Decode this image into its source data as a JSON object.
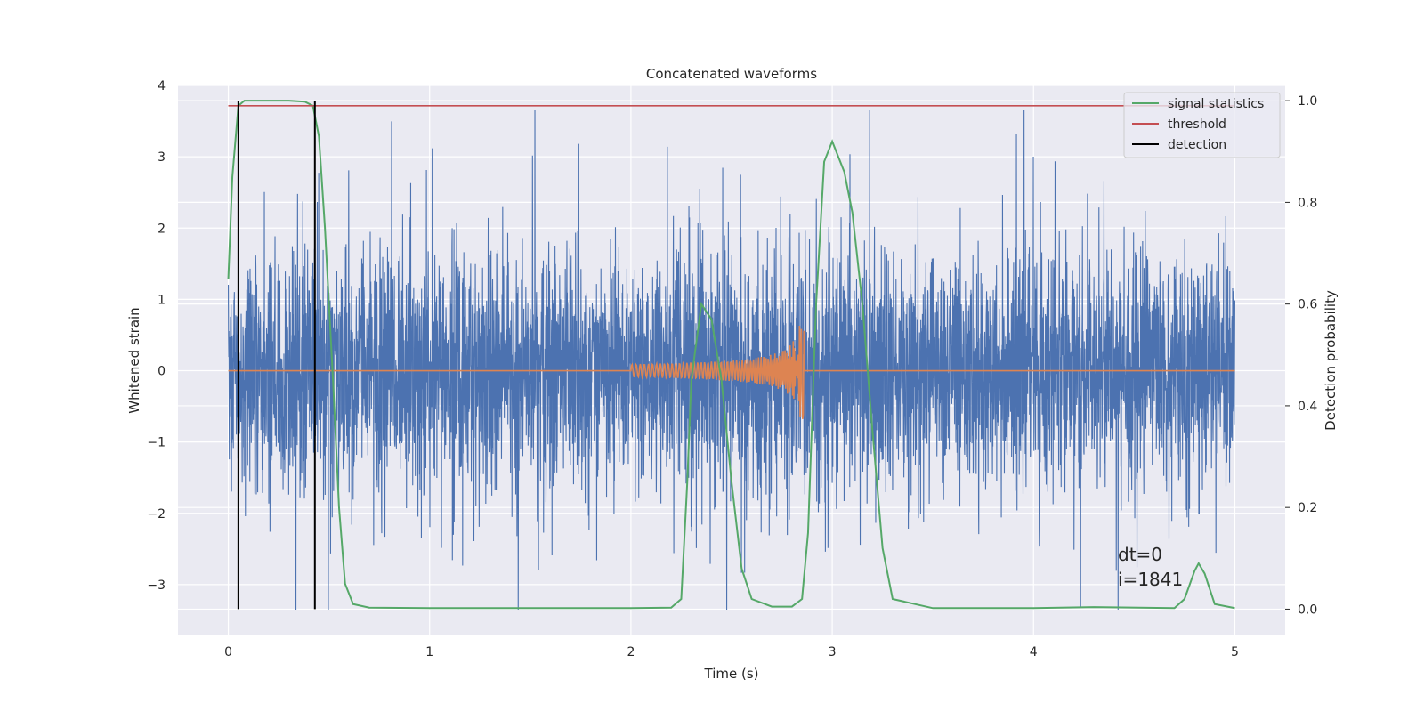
{
  "chart_data": {
    "type": "line",
    "title": "Concatenated waveforms",
    "xlabel": "Time (s)",
    "ylabel_left": "Whitened strain",
    "ylabel_right": "Detection probability",
    "xlim": [
      -0.25,
      5.25
    ],
    "ylim_left": [
      -3.7,
      4.0
    ],
    "ylim_right": [
      -0.05,
      1.03
    ],
    "xticks": [
      0,
      1,
      2,
      3,
      4,
      5
    ],
    "yticks_left": [
      -3,
      -2,
      -1,
      0,
      1,
      2,
      3,
      4
    ],
    "yticks_right": [
      0.0,
      0.2,
      0.4,
      0.6,
      0.8,
      1.0
    ],
    "ytick_labels_left": [
      "−3",
      "−2",
      "−1",
      "0",
      "1",
      "2",
      "3",
      "4"
    ],
    "ytick_labels_right": [
      "0.0",
      "0.2",
      "0.4",
      "0.6",
      "0.8",
      "1.0"
    ],
    "grid": true,
    "legend_position": "top-right",
    "legend": [
      "signal statistics",
      "threshold",
      "detection"
    ],
    "annotations": [
      "dt=0",
      "i=1841"
    ],
    "colors": {
      "background": "#eaeaf2",
      "strain": "#4c72b0",
      "injection": "#dd8452",
      "signal_statistics": "#55a868",
      "threshold": "#c44e52",
      "detection": "#000000",
      "grid": "#ffffff"
    },
    "series": [
      {
        "name": "signal statistics",
        "axis": "right",
        "x": [
          0.0,
          0.02,
          0.05,
          0.08,
          0.12,
          0.2,
          0.3,
          0.38,
          0.42,
          0.45,
          0.48,
          0.52,
          0.55,
          0.58,
          0.62,
          0.7,
          1.0,
          1.5,
          2.0,
          2.2,
          2.25,
          2.28,
          2.3,
          2.35,
          2.4,
          2.45,
          2.5,
          2.55,
          2.6,
          2.7,
          2.8,
          2.85,
          2.88,
          2.92,
          2.96,
          3.0,
          3.02,
          3.06,
          3.1,
          3.15,
          3.2,
          3.25,
          3.3,
          3.5,
          4.0,
          4.3,
          4.7,
          4.75,
          4.8,
          4.82,
          4.85,
          4.9,
          5.0
        ],
        "y": [
          0.65,
          0.85,
          0.99,
          1.0,
          1.0,
          1.0,
          1.0,
          0.998,
          0.99,
          0.93,
          0.75,
          0.45,
          0.2,
          0.05,
          0.01,
          0.003,
          0.002,
          0.002,
          0.002,
          0.003,
          0.02,
          0.25,
          0.45,
          0.6,
          0.57,
          0.45,
          0.25,
          0.08,
          0.02,
          0.005,
          0.005,
          0.02,
          0.15,
          0.6,
          0.88,
          0.92,
          0.9,
          0.86,
          0.78,
          0.6,
          0.35,
          0.12,
          0.02,
          0.002,
          0.002,
          0.004,
          0.002,
          0.02,
          0.075,
          0.09,
          0.07,
          0.01,
          0.002
        ]
      },
      {
        "name": "threshold",
        "axis": "right",
        "x": [
          0.0,
          5.0
        ],
        "y": [
          0.99,
          0.99
        ]
      },
      {
        "name": "detection",
        "axis": "right",
        "x": [
          0.05,
          0.43
        ],
        "y": [
          [
            0.0,
            1.0
          ],
          [
            0.0,
            1.0
          ]
        ]
      }
    ]
  }
}
